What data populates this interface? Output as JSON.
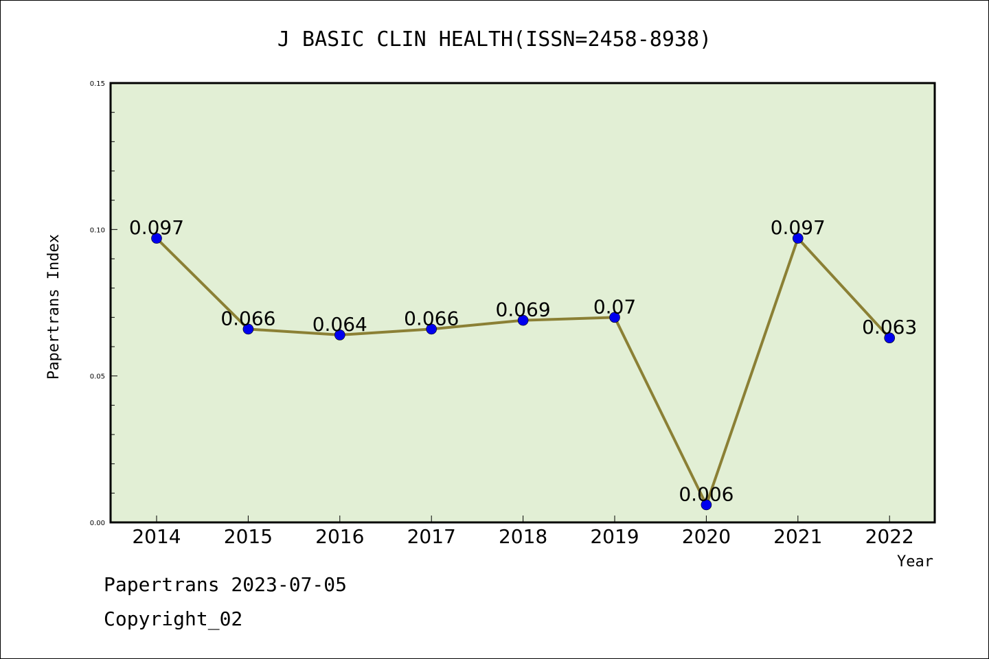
{
  "chart_data": {
    "type": "line",
    "title": "J BASIC CLIN HEALTH(ISSN=2458-8938)",
    "xlabel": "Year",
    "ylabel": "Papertrans Index",
    "categories": [
      "2014",
      "2015",
      "2016",
      "2017",
      "2018",
      "2019",
      "2020",
      "2021",
      "2022"
    ],
    "values": [
      0.097,
      0.066,
      0.064,
      0.066,
      0.069,
      0.07,
      0.006,
      0.097,
      0.063
    ],
    "data_labels": [
      "0.097",
      "0.066",
      "0.064",
      "0.066",
      "0.069",
      "0.07",
      "0.006",
      "0.097",
      "0.063"
    ],
    "ylim": [
      0,
      0.15
    ],
    "yticks": [
      "0.00",
      "0.05",
      "0.10",
      "0.15"
    ],
    "grid": false,
    "legend": "none",
    "colors": {
      "plot_background": "#e2efd5",
      "line": "#8b8035",
      "marker": "#0000ee"
    }
  },
  "footer": {
    "date_line": "Papertrans 2023-07-05",
    "copyright_line": "Copyright_02"
  }
}
